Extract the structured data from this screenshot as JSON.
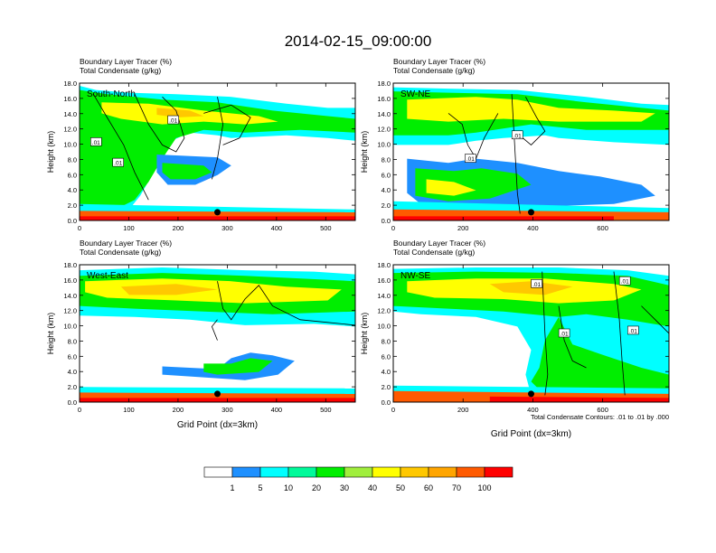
{
  "page": {
    "title": "2014-02-15_09:00:00",
    "footnote": "Total Condensate Contours: .01 to .01 by .000"
  },
  "palette": {
    "colors": [
      "#ffffff",
      "#1e90ff",
      "#00ffff",
      "#00fa9a",
      "#00ee00",
      "#a0ee3c",
      "#ffff00",
      "#ffc800",
      "#ffa500",
      "#ff5a00",
      "#ff0000"
    ],
    "labels": [
      "1",
      "5",
      "10",
      "20",
      "30",
      "40",
      "50",
      "60",
      "70",
      "100"
    ]
  },
  "chart_data": [
    {
      "type": "heatmap",
      "subtitle1": "Boundary Layer Tracer   (%)",
      "subtitle2": "Total Condensate   (g/kg)",
      "title": "South-North",
      "xlabel": "",
      "ylabel": "Height (km)",
      "xlim": [
        0,
        560
      ],
      "ylim": [
        0,
        18
      ],
      "xticks": [
        0,
        100,
        200,
        300,
        400,
        500
      ],
      "yticks": [
        0,
        2,
        4,
        6,
        8,
        10,
        12,
        14,
        16,
        18
      ],
      "ytick_labels": [
        "0.0",
        "2.0",
        "4.0",
        "6.0",
        "8.0",
        "10.0",
        "12.0",
        "14.0",
        "16.0",
        "18.0"
      ],
      "marker_x": 280,
      "contour_labels": [
        ".01",
        ".01",
        ".01"
      ]
    },
    {
      "type": "heatmap",
      "subtitle1": "Boundary Layer Tracer   (%)",
      "subtitle2": "Total Condensate   (g/kg)",
      "title": "SW-NE",
      "xlabel": "",
      "ylabel": "Height (km)",
      "xlim": [
        0,
        790
      ],
      "ylim": [
        0,
        18
      ],
      "xticks": [
        0,
        200,
        400,
        600
      ],
      "yticks": [
        0,
        2,
        4,
        6,
        8,
        10,
        12,
        14,
        16,
        18
      ],
      "ytick_labels": [
        "0.0",
        "2.0",
        "4.0",
        "6.0",
        "8.0",
        "10.0",
        "12.0",
        "14.0",
        "16.0",
        "18.0"
      ],
      "marker_x": 395,
      "contour_labels": [
        ".01",
        ".01"
      ]
    },
    {
      "type": "heatmap",
      "subtitle1": "Boundary Layer Tracer   (%)",
      "subtitle2": "Total Condensate   (g/kg)",
      "title": "West-East",
      "xlabel": "Grid Point (dx=3km)",
      "ylabel": "Height (km)",
      "xlim": [
        0,
        560
      ],
      "ylim": [
        0,
        18
      ],
      "xticks": [
        0,
        100,
        200,
        300,
        400,
        500
      ],
      "yticks": [
        0,
        2,
        4,
        6,
        8,
        10,
        12,
        14,
        16,
        18
      ],
      "ytick_labels": [
        "0.0",
        "2.0",
        "4.0",
        "6.0",
        "8.0",
        "10.0",
        "12.0",
        "14.0",
        "16.0",
        "18.0"
      ],
      "marker_x": 280,
      "contour_labels": []
    },
    {
      "type": "heatmap",
      "subtitle1": "Boundary Layer Tracer   (%)",
      "subtitle2": "Total Condensate   (g/kg)",
      "title": "NW-SE",
      "xlabel": "Grid Point (dx=3km)",
      "ylabel": "Height (km)",
      "xlim": [
        0,
        790
      ],
      "ylim": [
        0,
        18
      ],
      "xticks": [
        0,
        200,
        400,
        600
      ],
      "yticks": [
        0,
        2,
        4,
        6,
        8,
        10,
        12,
        14,
        16,
        18
      ],
      "ytick_labels": [
        "0.0",
        "2.0",
        "4.0",
        "6.0",
        "8.0",
        "10.0",
        "12.0",
        "14.0",
        "16.0",
        "18.0"
      ],
      "marker_x": 395,
      "contour_labels": [
        ".01",
        ".01",
        ".01",
        ".01"
      ]
    }
  ]
}
